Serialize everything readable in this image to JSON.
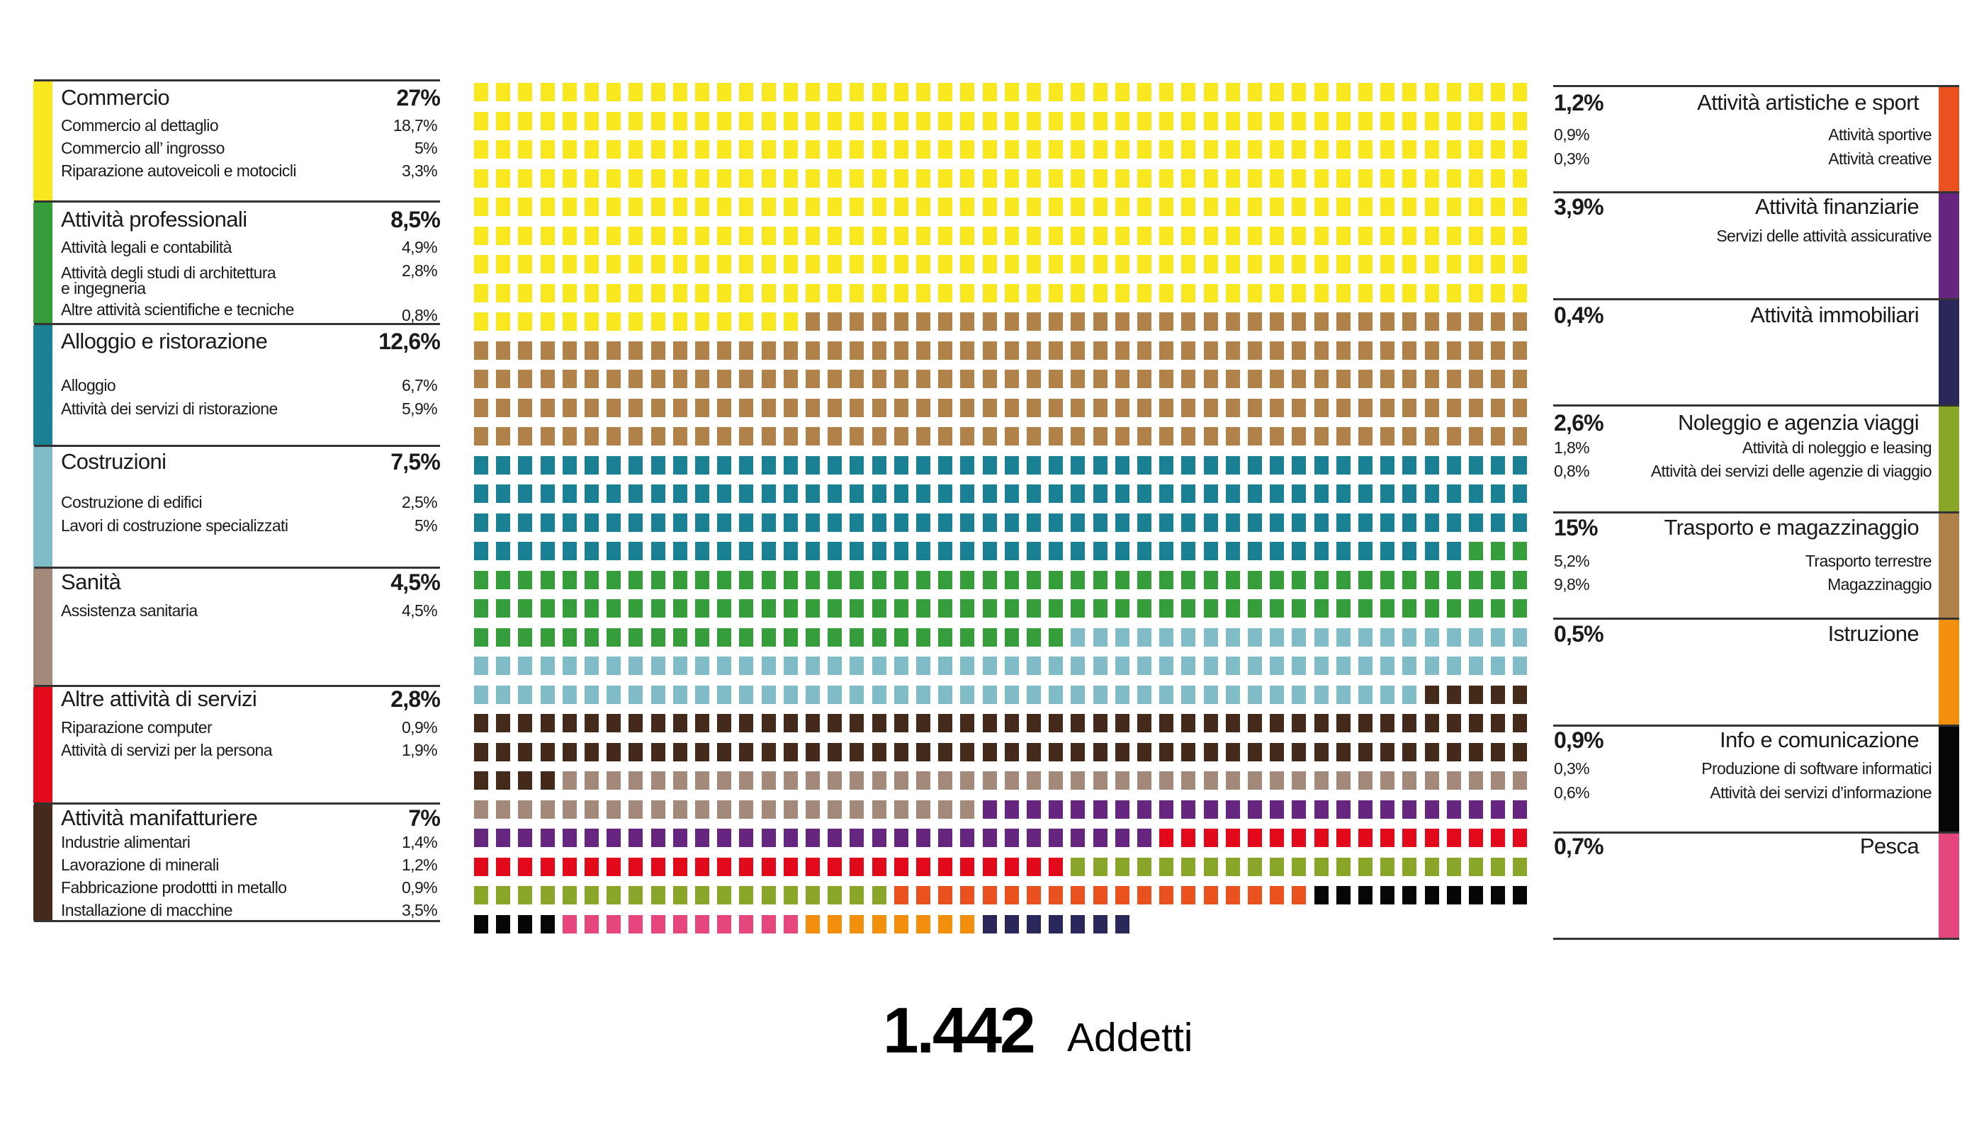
{
  "chart_data": {
    "type": "waffle",
    "total_label": "1.442",
    "unit_label": "Addetti",
    "columns": 48,
    "waffle_order": [
      {
        "category": "Commercio",
        "color": "#f9e81f",
        "squares": 399
      },
      {
        "category": "Trasporto e magazzinaggio",
        "color": "#b08149",
        "squares": 225
      },
      {
        "category": "Alloggio e ristorazione",
        "color": "#1a8093",
        "squares": 189
      },
      {
        "category": "Attività professionali",
        "color": "#359d3a",
        "squares": 126
      },
      {
        "category": "Costruzioni",
        "color": "#80bcc8",
        "squares": 112
      },
      {
        "category": "Attività manifatturiere",
        "color": "#432a1b",
        "squares": 105
      },
      {
        "category": "Sanità",
        "color": "#a2897a",
        "squares": 67
      },
      {
        "category": "Attività finanziarie",
        "color": "#66257f",
        "squares": 56
      },
      {
        "category": "Altre attività di servizi",
        "color": "#e20a1a",
        "squares": 44
      },
      {
        "category": "Noleggio e agenzia viaggi",
        "color": "#8aa629",
        "squares": 40
      },
      {
        "category": "Attività artistiche e sport",
        "color": "#e9511e",
        "squares": 19
      },
      {
        "category": "Info e comunicazione",
        "color": "#060606",
        "squares": 14
      },
      {
        "category": "Pesca",
        "color": "#e6467e",
        "squares": 11
      },
      {
        "category": "Istruzione",
        "color": "#f2900e",
        "squares": 8
      },
      {
        "category": "Attività immobiliari",
        "color": "#2a285a",
        "squares": 7
      }
    ]
  },
  "left": [
    {
      "title": "Commercio",
      "pct": "27%",
      "color": "#f9e81f",
      "items": [
        {
          "label": "Commercio al dettaglio",
          "pct": "18,7%"
        },
        {
          "label": "Commercio all’ ingrosso",
          "pct": "5%"
        },
        {
          "label": "Riparazione autoveicoli e motocicli",
          "pct": "3,3%"
        }
      ]
    },
    {
      "title": "Attività professionali",
      "pct": "8,5%",
      "color": "#359d3a",
      "items": [
        {
          "label": "Attività legali e contabilità",
          "pct": "4,9%"
        },
        {
          "label": "Attività degli studi di architettura\ne ingegneria",
          "pct": "2,8%"
        },
        {
          "label": "Altre attività scientifiche e tecniche",
          "pct": "0,8%"
        }
      ]
    },
    {
      "title": "Alloggio e ristorazione",
      "pct": "12,6%",
      "color": "#1a8093",
      "items": [
        {
          "label": "Alloggio",
          "pct": "6,7%"
        },
        {
          "label": "Attività dei servizi di ristorazione",
          "pct": "5,9%"
        }
      ]
    },
    {
      "title": "Costruzioni",
      "pct": "7,5%",
      "color": "#80bcc8",
      "items": [
        {
          "label": "Costruzione di edifici",
          "pct": "2,5%"
        },
        {
          "label": "Lavori di costruzione specializzati",
          "pct": "5%"
        }
      ]
    },
    {
      "title": "Sanità",
      "pct": "4,5%",
      "color": "#a2897a",
      "items": [
        {
          "label": "Assistenza sanitaria",
          "pct": "4,5%"
        }
      ]
    },
    {
      "title": "Altre attività di servizi",
      "pct": "2,8%",
      "color": "#e20a1a",
      "items": [
        {
          "label": "Riparazione computer",
          "pct": "0,9%"
        },
        {
          "label": "Attività di servizi per la persona",
          "pct": "1,9%"
        }
      ]
    },
    {
      "title": "Attività manifatturiere",
      "pct": "7%",
      "color": "#432a1b",
      "items": [
        {
          "label": "Industrie alimentari",
          "pct": "1,4%"
        },
        {
          "label": "Lavorazione di minerali",
          "pct": "1,2%"
        },
        {
          "label": "Fabbricazione prodottti in metallo",
          "pct": "0,9%"
        },
        {
          "label": "Installazione di macchine",
          "pct": "3,5%"
        }
      ]
    }
  ],
  "right": [
    {
      "title": "Attività artistiche e sport",
      "pct": "1,2%",
      "color": "#e9511e",
      "items": [
        {
          "label": "Attività sportive",
          "pct": "0,9%"
        },
        {
          "label": "Attività creative",
          "pct": "0,3%"
        }
      ]
    },
    {
      "title": "Attività finanziarie",
      "pct": "3,9%",
      "color": "#66257f",
      "items": [
        {
          "label": "Servizi delle attività assicurative",
          "pct": ""
        }
      ]
    },
    {
      "title": "Attività immobiliari",
      "pct": "0,4%",
      "color": "#2a285a",
      "items": []
    },
    {
      "title": "Noleggio e agenzia viaggi",
      "pct": "2,6%",
      "color": "#8aa629",
      "items": [
        {
          "label": "Attività di noleggio e leasing",
          "pct": "1,8%"
        },
        {
          "label": "Attività dei servizi delle agenzie di viaggio",
          "pct": "0,8%"
        }
      ]
    },
    {
      "title": "Trasporto e magazzinaggio",
      "pct": "15%",
      "color": "#b08149",
      "items": [
        {
          "label": "Trasporto terrestre",
          "pct": "5,2%"
        },
        {
          "label": "Magazzinaggio",
          "pct": "9,8%"
        }
      ]
    },
    {
      "title": "Istruzione",
      "pct": "0,5%",
      "color": "#f2900e",
      "items": []
    },
    {
      "title": "Info e comunicazione",
      "pct": "0,9%",
      "color": "#060606",
      "items": [
        {
          "label": "Produzione di software informatici",
          "pct": "0,3%"
        },
        {
          "label": "Attività dei servizi d’informazione",
          "pct": "0,6%"
        }
      ]
    },
    {
      "title": "Pesca",
      "pct": "0,7%",
      "color": "#e6467e",
      "items": []
    }
  ]
}
